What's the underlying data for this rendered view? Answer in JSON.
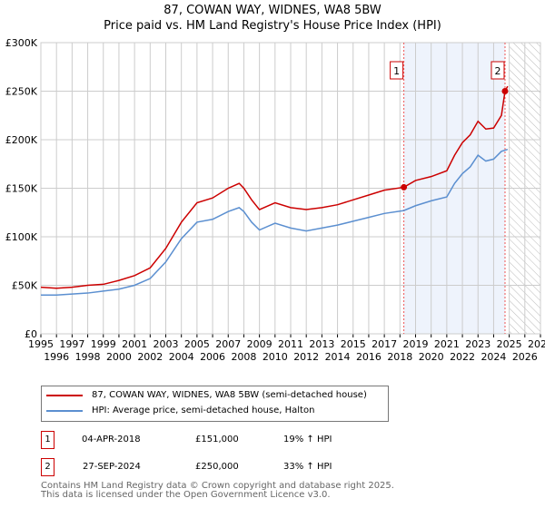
{
  "chart_data": {
    "type": "line",
    "title": "87, COWAN WAY, WIDNES, WA8 5BW",
    "subtitle": "Price paid vs. HM Land Registry's House Price Index (HPI)",
    "xlim": [
      1995,
      2027
    ],
    "ylim": [
      0,
      300000
    ],
    "x_ticks": [
      "1995",
      "1996",
      "1997",
      "1998",
      "1999",
      "2000",
      "2001",
      "2002",
      "2003",
      "2004",
      "2005",
      "2006",
      "2007",
      "2008",
      "2009",
      "2010",
      "2011",
      "2012",
      "2013",
      "2014",
      "2015",
      "2016",
      "2017",
      "2018",
      "2019",
      "2020",
      "2021",
      "2022",
      "2023",
      "2024",
      "2025",
      "2026",
      "2027"
    ],
    "y_ticks": [
      {
        "v": 0,
        "label": "£0"
      },
      {
        "v": 50000,
        "label": "£50K"
      },
      {
        "v": 100000,
        "label": "£100K"
      },
      {
        "v": 150000,
        "label": "£150K"
      },
      {
        "v": 200000,
        "label": "£200K"
      },
      {
        "v": 250000,
        "label": "£250K"
      },
      {
        "v": 300000,
        "label": "£300K"
      }
    ],
    "grid": true,
    "series": [
      {
        "name": "87, COWAN WAY, WIDNES, WA8 5BW (semi-detached house)",
        "color": "#cc0000",
        "points": [
          [
            1995,
            48000
          ],
          [
            1996,
            47000
          ],
          [
            1997,
            48000
          ],
          [
            1998,
            50000
          ],
          [
            1999,
            51000
          ],
          [
            2000,
            55000
          ],
          [
            2001,
            60000
          ],
          [
            2002,
            68000
          ],
          [
            2003,
            88000
          ],
          [
            2004,
            115000
          ],
          [
            2005,
            135000
          ],
          [
            2006,
            140000
          ],
          [
            2007,
            150000
          ],
          [
            2007.7,
            155000
          ],
          [
            2008,
            150000
          ],
          [
            2008.5,
            138000
          ],
          [
            2009,
            128000
          ],
          [
            2010,
            135000
          ],
          [
            2011,
            130000
          ],
          [
            2012,
            128000
          ],
          [
            2013,
            130000
          ],
          [
            2014,
            133000
          ],
          [
            2015,
            138000
          ],
          [
            2016,
            143000
          ],
          [
            2017,
            148000
          ],
          [
            2018.25,
            151000
          ],
          [
            2019,
            158000
          ],
          [
            2020,
            162000
          ],
          [
            2021,
            168000
          ],
          [
            2021.5,
            184000
          ],
          [
            2022,
            197000
          ],
          [
            2022.5,
            205000
          ],
          [
            2023,
            219000
          ],
          [
            2023.5,
            211000
          ],
          [
            2024,
            212000
          ],
          [
            2024.5,
            225000
          ],
          [
            2024.73,
            250000
          ],
          [
            2024.9,
            255000
          ]
        ]
      },
      {
        "name": "HPI: Average price, semi-detached house, Halton",
        "color": "#5b8fd0",
        "points": [
          [
            1995,
            40000
          ],
          [
            1996,
            40000
          ],
          [
            1997,
            41000
          ],
          [
            1998,
            42000
          ],
          [
            1999,
            44000
          ],
          [
            2000,
            46000
          ],
          [
            2001,
            50000
          ],
          [
            2002,
            57000
          ],
          [
            2003,
            74000
          ],
          [
            2004,
            98000
          ],
          [
            2005,
            115000
          ],
          [
            2006,
            118000
          ],
          [
            2007,
            126000
          ],
          [
            2007.7,
            130000
          ],
          [
            2008,
            126000
          ],
          [
            2008.5,
            115000
          ],
          [
            2009,
            107000
          ],
          [
            2010,
            114000
          ],
          [
            2011,
            109000
          ],
          [
            2012,
            106000
          ],
          [
            2013,
            109000
          ],
          [
            2014,
            112000
          ],
          [
            2015,
            116000
          ],
          [
            2016,
            120000
          ],
          [
            2017,
            124000
          ],
          [
            2018.25,
            127000
          ],
          [
            2019,
            132000
          ],
          [
            2020,
            137000
          ],
          [
            2021,
            141000
          ],
          [
            2021.5,
            155000
          ],
          [
            2022,
            165000
          ],
          [
            2022.5,
            172000
          ],
          [
            2023,
            184000
          ],
          [
            2023.5,
            178000
          ],
          [
            2024,
            180000
          ],
          [
            2024.5,
            188000
          ],
          [
            2024.9,
            190000
          ]
        ]
      }
    ],
    "annotations": [
      {
        "label": "1",
        "x": 2018.25,
        "y": 151000
      },
      {
        "label": "2",
        "x": 2024.73,
        "y": 250000
      }
    ],
    "shaded_range": [
      2018.25,
      2024.73
    ],
    "forecast_hatch_from": 2025
  },
  "legend": {
    "red": "87, COWAN WAY, WIDNES, WA8 5BW (semi-detached house)",
    "blue": "HPI: Average price, semi-detached house, Halton"
  },
  "sales": [
    {
      "num": "1",
      "date": "04-APR-2018",
      "price": "£151,000",
      "hpi": "19% ↑ HPI"
    },
    {
      "num": "2",
      "date": "27-SEP-2024",
      "price": "£250,000",
      "hpi": "33% ↑ HPI"
    }
  ],
  "footer": {
    "line1": "Contains HM Land Registry data © Crown copyright and database right 2025.",
    "line2": "This data is licensed under the Open Government Licence v3.0."
  }
}
